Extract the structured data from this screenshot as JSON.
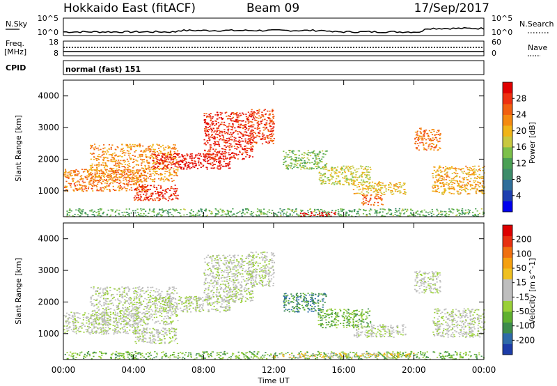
{
  "header": {
    "station": "Hokkaido East (fitACF)",
    "beam": "Beam 09",
    "date": "17/Sep/2017"
  },
  "noise_panel": {
    "left_label": "N.Sky",
    "right_label": "N.Search",
    "left_ticks": [
      "10^5",
      "10^0"
    ],
    "right_ticks": [
      "10^5",
      "10^0"
    ]
  },
  "freq_panel": {
    "left_label_line1": "Freq.",
    "left_label_line2": "[MHz]",
    "left_ticks": [
      "18",
      "8"
    ],
    "right_label": "Nave",
    "right_ticks": [
      "60",
      "0"
    ]
  },
  "cpid": {
    "label": "CPID",
    "value": "normal (fast) 151"
  },
  "x_axis": {
    "label": "Time UT",
    "ticks": [
      "00:00",
      "04:00",
      "08:00",
      "12:00",
      "16:00",
      "20:00",
      "00:00"
    ]
  },
  "chart_data": [
    {
      "type": "heatmap",
      "quantity": "Power",
      "ylabel": "Slant Range [km]",
      "ylim": [
        180,
        4500
      ],
      "xlim": [
        0,
        24
      ],
      "yticks": [
        "1000",
        "2000",
        "3000",
        "4000"
      ],
      "colorbar": {
        "label": "Power [dB]",
        "ticks": [
          "4",
          "8",
          "12",
          "16",
          "20",
          "24",
          "28"
        ],
        "colors": [
          "#0000ee",
          "#1e3fb0",
          "#2f6e9a",
          "#3d8c6a",
          "#4aa055",
          "#7cc04a",
          "#c8c840",
          "#f0b418",
          "#f58a10",
          "#f26010",
          "#ee3010",
          "#e00000"
        ]
      },
      "regions": [
        {
          "x": [
            0.0,
            4.8
          ],
          "y": [
            1000,
            1700
          ],
          "level": 0.75
        },
        {
          "x": [
            1.5,
            6.5
          ],
          "y": [
            1300,
            2500
          ],
          "level": 0.7
        },
        {
          "x": [
            4.0,
            6.5
          ],
          "y": [
            700,
            1200
          ],
          "level": 0.9
        },
        {
          "x": [
            5.0,
            9.5
          ],
          "y": [
            1700,
            2200
          ],
          "level": 0.95
        },
        {
          "x": [
            8.0,
            10.8
          ],
          "y": [
            2000,
            3500
          ],
          "level": 0.9
        },
        {
          "x": [
            10.5,
            12.0
          ],
          "y": [
            2500,
            3600
          ],
          "level": 0.85
        },
        {
          "x": [
            12.5,
            15.0
          ],
          "y": [
            1700,
            2300
          ],
          "level": 0.45
        },
        {
          "x": [
            14.5,
            17.5
          ],
          "y": [
            1200,
            1800
          ],
          "level": 0.55
        },
        {
          "x": [
            16.5,
            19.5
          ],
          "y": [
            900,
            1300
          ],
          "level": 0.6
        },
        {
          "x": [
            17.0,
            18.2
          ],
          "y": [
            550,
            900
          ],
          "level": 0.8
        },
        {
          "x": [
            20.0,
            21.5
          ],
          "y": [
            2300,
            3000
          ],
          "level": 0.75
        },
        {
          "x": [
            21.0,
            24.0
          ],
          "y": [
            900,
            1800
          ],
          "level": 0.65
        },
        {
          "x": [
            0.0,
            24.0
          ],
          "y": [
            200,
            450
          ],
          "level": 0.4
        },
        {
          "x": [
            13.5,
            15.5
          ],
          "y": [
            200,
            350
          ],
          "level": 1.0
        }
      ]
    },
    {
      "type": "heatmap",
      "quantity": "Velocity",
      "ylabel": "Slant Range [km]",
      "ylim": [
        180,
        4500
      ],
      "xlim": [
        0,
        24
      ],
      "yticks": [
        "1000",
        "2000",
        "3000",
        "4000"
      ],
      "colorbar": {
        "label": "Velocity [m s^-1]",
        "ticks": [
          "200",
          "100",
          "50",
          "15",
          "-15",
          "-50",
          "-100",
          "-200"
        ],
        "colors": [
          "#1c3ca8",
          "#2e6aa8",
          "#3d8c4c",
          "#5fb030",
          "#9ad038",
          "#bebebe",
          "#bebebe",
          "#f0c020",
          "#f5a010",
          "#f07010",
          "#e83010",
          "#dd0000"
        ]
      },
      "regions": [
        {
          "x": [
            0.0,
            4.8
          ],
          "y": [
            1000,
            1700
          ],
          "level": 0.45
        },
        {
          "x": [
            1.5,
            6.5
          ],
          "y": [
            1300,
            2500
          ],
          "level": 0.45
        },
        {
          "x": [
            4.0,
            6.5
          ],
          "y": [
            700,
            1200
          ],
          "level": 0.45
        },
        {
          "x": [
            5.0,
            9.5
          ],
          "y": [
            1700,
            2200
          ],
          "level": 0.45
        },
        {
          "x": [
            8.0,
            10.8
          ],
          "y": [
            2000,
            3500
          ],
          "level": 0.45
        },
        {
          "x": [
            10.5,
            12.0
          ],
          "y": [
            2500,
            3600
          ],
          "level": 0.45
        },
        {
          "x": [
            12.5,
            15.0
          ],
          "y": [
            1700,
            2300
          ],
          "level": 0.2
        },
        {
          "x": [
            14.5,
            17.5
          ],
          "y": [
            1200,
            1800
          ],
          "level": 0.3
        },
        {
          "x": [
            16.5,
            19.5
          ],
          "y": [
            900,
            1300
          ],
          "level": 0.45
        },
        {
          "x": [
            20.0,
            21.5
          ],
          "y": [
            2300,
            3000
          ],
          "level": 0.45
        },
        {
          "x": [
            21.0,
            24.0
          ],
          "y": [
            900,
            1800
          ],
          "level": 0.45
        },
        {
          "x": [
            0.0,
            24.0
          ],
          "y": [
            200,
            450
          ],
          "level": 0.3
        },
        {
          "x": [
            12.0,
            20.0
          ],
          "y": [
            250,
            400
          ],
          "level": 0.6
        }
      ]
    }
  ]
}
